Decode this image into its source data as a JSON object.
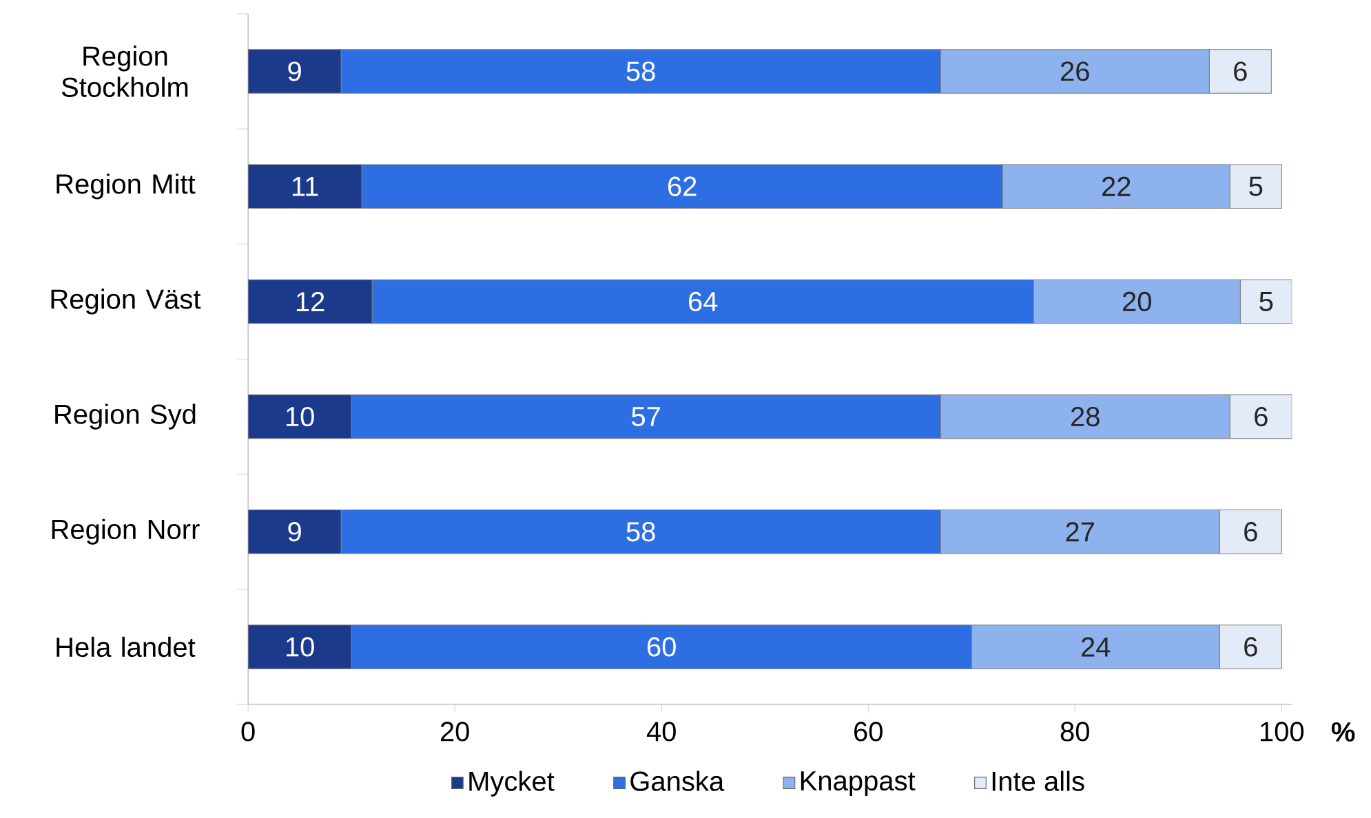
{
  "chart_data": {
    "type": "bar",
    "orientation": "horizontal",
    "stacked": true,
    "data_labels": true,
    "legend": "bottom",
    "grid": false,
    "xlabel": "%",
    "categories": [
      "Region Stockholm",
      "Region Mitt",
      "Region Väst",
      "Region Syd",
      "Region Norr",
      "Hela landet"
    ],
    "series": [
      {
        "name": "Mycket",
        "color": "#1c3a8c",
        "values": [
          9,
          11,
          12,
          10,
          9,
          10
        ]
      },
      {
        "name": "Ganska",
        "color": "#2d6fe3",
        "values": [
          58,
          62,
          64,
          57,
          58,
          60
        ]
      },
      {
        "name": "Knappast",
        "color": "#8db2ee",
        "values": [
          26,
          22,
          20,
          28,
          27,
          24
        ]
      },
      {
        "name": "Inte alls",
        "color": "#e3eaf8",
        "values": [
          6,
          5,
          5,
          6,
          6,
          6
        ]
      }
    ],
    "xlim": [
      0,
      101
    ],
    "xticks": [
      0,
      20,
      40,
      60,
      80,
      100
    ]
  }
}
